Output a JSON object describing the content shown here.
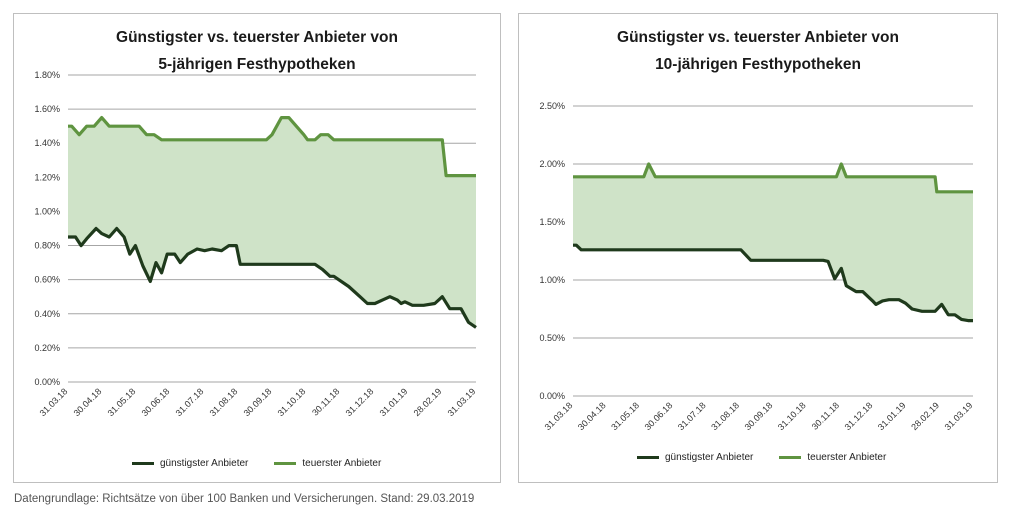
{
  "colors": {
    "cheapest": "#1f3a1c",
    "expensive": "#5f9440",
    "fill": "#cfe3c8",
    "grid": "#a6a6a6"
  },
  "source_note": "Datengrundlage: Richtsätze von über 100 Banken und Versicherungen. Stand: 29.03.2019",
  "chart_data": [
    {
      "type": "area",
      "title_line1": "Günstigster vs. teuerster Anbieter von",
      "title_line2": "5-jährigen Festhypotheken",
      "ylim": [
        0,
        1.8
      ],
      "y_ticks": [
        0,
        0.2,
        0.4,
        0.6,
        0.8,
        1.0,
        1.2,
        1.4,
        1.6,
        1.8
      ],
      "y_tick_labels": [
        "0.00%",
        "0.20%",
        "0.40%",
        "0.60%",
        "0.80%",
        "1.00%",
        "1.20%",
        "1.40%",
        "1.60%",
        "1.80%"
      ],
      "x_tick_labels": [
        "31.03.18",
        "30.04.18",
        "31.05.18",
        "30.06.18",
        "31.07.18",
        "31.08.18",
        "30.09.18",
        "31.10.18",
        "30.11.18",
        "31.12.18",
        "31.01.19",
        "28.02.19",
        "31.03.19"
      ],
      "legend": [
        "günstigster Anbieter",
        "teuerster Anbieter"
      ],
      "series": [
        {
          "name": "günstigster Anbieter",
          "points": [
            [
              0,
              0.85
            ],
            [
              0.2,
              0.85
            ],
            [
              0.35,
              0.8
            ],
            [
              0.5,
              0.84
            ],
            [
              0.75,
              0.9
            ],
            [
              0.9,
              0.87
            ],
            [
              1.1,
              0.85
            ],
            [
              1.3,
              0.9
            ],
            [
              1.5,
              0.85
            ],
            [
              1.65,
              0.75
            ],
            [
              1.8,
              0.8
            ],
            [
              2.0,
              0.68
            ],
            [
              2.2,
              0.59
            ],
            [
              2.35,
              0.7
            ],
            [
              2.5,
              0.64
            ],
            [
              2.65,
              0.75
            ],
            [
              2.85,
              0.75
            ],
            [
              3.0,
              0.7
            ],
            [
              3.2,
              0.75
            ],
            [
              3.45,
              0.78
            ],
            [
              3.65,
              0.77
            ],
            [
              3.85,
              0.78
            ],
            [
              4.1,
              0.77
            ],
            [
              4.3,
              0.8
            ],
            [
              4.5,
              0.8
            ],
            [
              4.6,
              0.69
            ],
            [
              5.0,
              0.69
            ],
            [
              6.0,
              0.69
            ],
            [
              6.6,
              0.69
            ],
            [
              6.8,
              0.66
            ],
            [
              7.0,
              0.62
            ],
            [
              7.1,
              0.62
            ],
            [
              7.5,
              0.56
            ],
            [
              7.8,
              0.5
            ],
            [
              8.0,
              0.46
            ],
            [
              8.2,
              0.46
            ],
            [
              8.4,
              0.48
            ],
            [
              8.6,
              0.5
            ],
            [
              8.8,
              0.48
            ],
            [
              8.9,
              0.46
            ],
            [
              9.0,
              0.47
            ],
            [
              9.2,
              0.45
            ],
            [
              9.5,
              0.45
            ],
            [
              9.8,
              0.46
            ],
            [
              10.0,
              0.5
            ],
            [
              10.2,
              0.43
            ],
            [
              10.5,
              0.43
            ],
            [
              10.7,
              0.35
            ],
            [
              10.9,
              0.32
            ]
          ]
        },
        {
          "name": "teuerster Anbieter",
          "points": [
            [
              0,
              1.5
            ],
            [
              0.1,
              1.5
            ],
            [
              0.3,
              1.45
            ],
            [
              0.5,
              1.5
            ],
            [
              0.7,
              1.5
            ],
            [
              0.9,
              1.55
            ],
            [
              1.1,
              1.5
            ],
            [
              1.3,
              1.5
            ],
            [
              1.5,
              1.5
            ],
            [
              1.9,
              1.5
            ],
            [
              2.1,
              1.45
            ],
            [
              2.3,
              1.45
            ],
            [
              2.5,
              1.42
            ],
            [
              3.0,
              1.42
            ],
            [
              5.3,
              1.42
            ],
            [
              5.45,
              1.45
            ],
            [
              5.7,
              1.55
            ],
            [
              5.9,
              1.55
            ],
            [
              6.3,
              1.45
            ],
            [
              6.4,
              1.42
            ],
            [
              6.6,
              1.42
            ],
            [
              6.75,
              1.45
            ],
            [
              6.95,
              1.45
            ],
            [
              7.1,
              1.42
            ],
            [
              9.8,
              1.42
            ],
            [
              10.0,
              1.42
            ],
            [
              10.1,
              1.21
            ],
            [
              10.5,
              1.21
            ],
            [
              10.9,
              1.21
            ]
          ]
        }
      ]
    },
    {
      "type": "area",
      "title_line1": "Günstigster vs. teuerster Anbieter von",
      "title_line2": "10-jährigen Festhypotheken",
      "ylim": [
        0,
        2.5
      ],
      "y_ticks": [
        0,
        0.5,
        1.0,
        1.5,
        2.0,
        2.5
      ],
      "y_tick_labels": [
        "0.00%",
        "0.50%",
        "1.00%",
        "1.50%",
        "2.00%",
        "2.50%"
      ],
      "x_tick_labels": [
        "31.03.18",
        "30.04.18",
        "31.05.18",
        "30.06.18",
        "31.07.18",
        "31.08.18",
        "30.09.18",
        "31.10.18",
        "30.11.18",
        "31.12.18",
        "31.01.19",
        "28.02.19",
        "31.03.19"
      ],
      "legend": [
        "günstigster Anbieter",
        "teuerster Anbieter"
      ],
      "series": [
        {
          "name": "günstigster Anbieter",
          "points": [
            [
              0,
              1.3
            ],
            [
              0.1,
              1.3
            ],
            [
              0.25,
              1.26
            ],
            [
              1.0,
              1.26
            ],
            [
              2.0,
              1.26
            ],
            [
              3.0,
              1.26
            ],
            [
              4.0,
              1.26
            ],
            [
              5.1,
              1.26
            ],
            [
              5.4,
              1.17
            ],
            [
              6.0,
              1.17
            ],
            [
              7.0,
              1.17
            ],
            [
              7.6,
              1.17
            ],
            [
              7.75,
              1.16
            ],
            [
              7.95,
              1.01
            ],
            [
              8.15,
              1.1
            ],
            [
              8.3,
              0.95
            ],
            [
              8.6,
              0.9
            ],
            [
              8.8,
              0.9
            ],
            [
              9.1,
              0.82
            ],
            [
              9.2,
              0.79
            ],
            [
              9.4,
              0.82
            ],
            [
              9.6,
              0.83
            ],
            [
              9.9,
              0.83
            ],
            [
              10.1,
              0.8
            ],
            [
              10.3,
              0.75
            ],
            [
              10.6,
              0.73
            ],
            [
              10.9,
              0.73
            ],
            [
              11.0,
              0.73
            ],
            [
              11.2,
              0.79
            ],
            [
              11.4,
              0.7
            ],
            [
              11.6,
              0.7
            ],
            [
              11.8,
              0.66
            ],
            [
              12.0,
              0.65
            ],
            [
              12.15,
              0.65
            ]
          ]
        },
        {
          "name": "teuerster Anbieter",
          "points": [
            [
              0,
              1.89
            ],
            [
              1.0,
              1.89
            ],
            [
              2.0,
              1.89
            ],
            [
              2.15,
              1.89
            ],
            [
              2.3,
              2.0
            ],
            [
              2.5,
              1.89
            ],
            [
              3.0,
              1.89
            ],
            [
              5.0,
              1.89
            ],
            [
              7.0,
              1.89
            ],
            [
              8.0,
              1.89
            ],
            [
              8.15,
              2.0
            ],
            [
              8.3,
              1.89
            ],
            [
              9.0,
              1.89
            ],
            [
              10.0,
              1.89
            ],
            [
              11.0,
              1.89
            ],
            [
              11.05,
              1.76
            ],
            [
              11.5,
              1.76
            ],
            [
              12.15,
              1.76
            ]
          ]
        }
      ]
    }
  ]
}
